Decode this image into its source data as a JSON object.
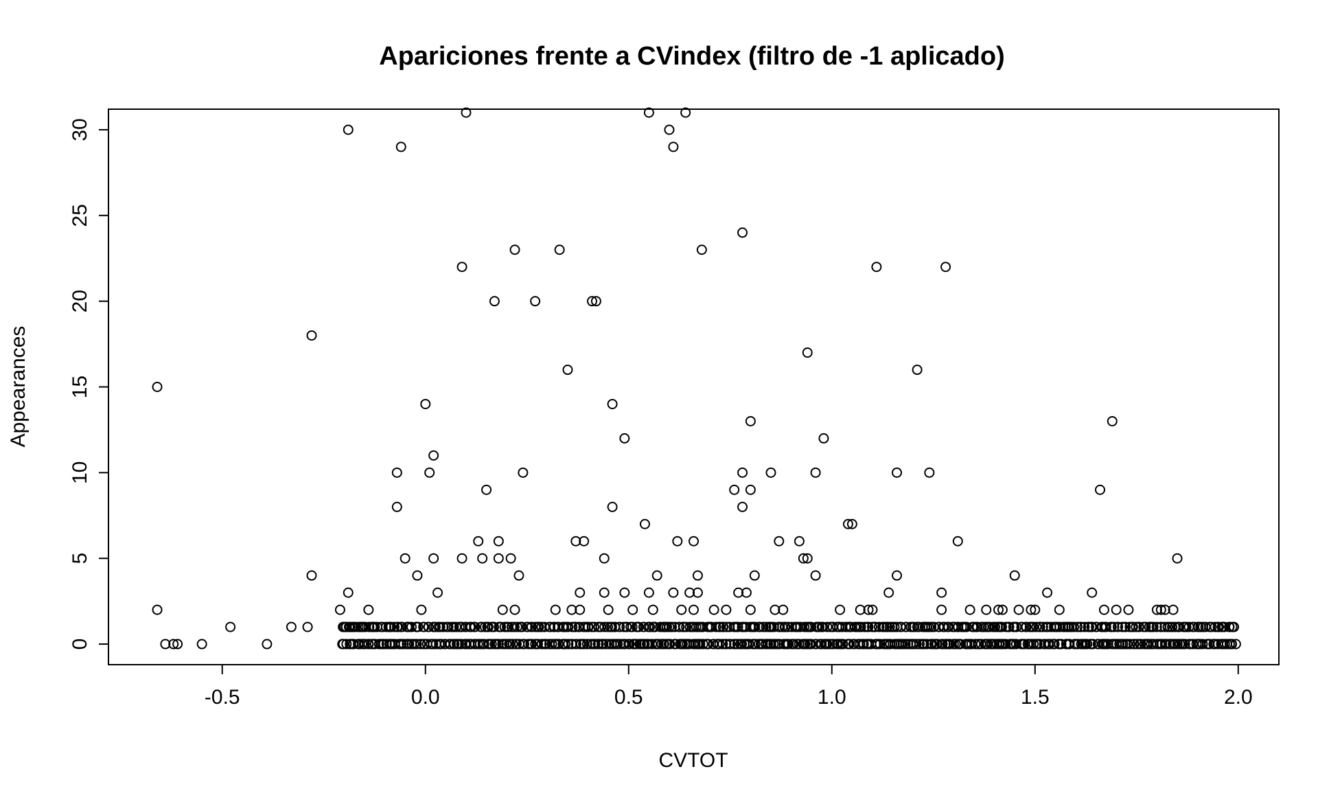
{
  "chart_data": {
    "type": "scatter",
    "title": "Apariciones frente a CVindex (filtro de -1 aplicado)",
    "xlabel": "CVTOT",
    "ylabel": "Appearances",
    "xlim": [
      -0.78,
      2.1
    ],
    "ylim": [
      -1.2,
      31.2
    ],
    "xticks": [
      -0.5,
      0.0,
      0.5,
      1.0,
      1.5,
      2.0
    ],
    "xtick_labels": [
      "-0.5",
      "0.0",
      "0.5",
      "1.0",
      "1.5",
      "2.0"
    ],
    "yticks": [
      0,
      5,
      10,
      15,
      20,
      25,
      30
    ],
    "ytick_labels": [
      "0",
      "5",
      "10",
      "15",
      "20",
      "25",
      "30"
    ],
    "grid": false,
    "marker": "open-circle",
    "points": [
      [
        -0.66,
        15
      ],
      [
        -0.66,
        2
      ],
      [
        -0.64,
        0
      ],
      [
        -0.62,
        0
      ],
      [
        -0.61,
        0
      ],
      [
        -0.55,
        0
      ],
      [
        -0.48,
        1
      ],
      [
        -0.39,
        0
      ],
      [
        -0.33,
        1
      ],
      [
        -0.29,
        1
      ],
      [
        -0.28,
        18
      ],
      [
        -0.28,
        4
      ],
      [
        -0.21,
        2
      ],
      [
        -0.2,
        1
      ],
      [
        -0.19,
        30
      ],
      [
        -0.19,
        3
      ],
      [
        -0.18,
        1
      ],
      [
        -0.16,
        1
      ],
      [
        -0.14,
        2
      ],
      [
        -0.13,
        1
      ],
      [
        -0.07,
        10
      ],
      [
        -0.07,
        8
      ],
      [
        -0.06,
        29
      ],
      [
        -0.05,
        5
      ],
      [
        -0.02,
        4
      ],
      [
        -0.01,
        2
      ],
      [
        0.0,
        14
      ],
      [
        0.01,
        10
      ],
      [
        0.02,
        11
      ],
      [
        0.02,
        5
      ],
      [
        0.03,
        3
      ],
      [
        0.09,
        22
      ],
      [
        0.09,
        5
      ],
      [
        0.1,
        31
      ],
      [
        0.13,
        6
      ],
      [
        0.14,
        5
      ],
      [
        0.15,
        9
      ],
      [
        0.17,
        20
      ],
      [
        0.18,
        6
      ],
      [
        0.18,
        5
      ],
      [
        0.19,
        2
      ],
      [
        0.21,
        5
      ],
      [
        0.22,
        23
      ],
      [
        0.22,
        2
      ],
      [
        0.23,
        4
      ],
      [
        0.24,
        10
      ],
      [
        0.27,
        20
      ],
      [
        0.32,
        2
      ],
      [
        0.33,
        23
      ],
      [
        0.35,
        16
      ],
      [
        0.36,
        2
      ],
      [
        0.37,
        6
      ],
      [
        0.38,
        2
      ],
      [
        0.39,
        6
      ],
      [
        0.38,
        3
      ],
      [
        0.41,
        20
      ],
      [
        0.42,
        20
      ],
      [
        0.44,
        5
      ],
      [
        0.44,
        3
      ],
      [
        0.45,
        2
      ],
      [
        0.46,
        14
      ],
      [
        0.46,
        8
      ],
      [
        0.49,
        12
      ],
      [
        0.49,
        3
      ],
      [
        0.51,
        2
      ],
      [
        0.54,
        7
      ],
      [
        0.55,
        31
      ],
      [
        0.55,
        3
      ],
      [
        0.56,
        2
      ],
      [
        0.57,
        4
      ],
      [
        0.6,
        30
      ],
      [
        0.61,
        29
      ],
      [
        0.61,
        3
      ],
      [
        0.62,
        6
      ],
      [
        0.63,
        2
      ],
      [
        0.64,
        31
      ],
      [
        0.65,
        3
      ],
      [
        0.66,
        6
      ],
      [
        0.66,
        2
      ],
      [
        0.67,
        4
      ],
      [
        0.67,
        3
      ],
      [
        0.68,
        23
      ],
      [
        0.71,
        2
      ],
      [
        0.74,
        2
      ],
      [
        0.76,
        9
      ],
      [
        0.77,
        3
      ],
      [
        0.78,
        24
      ],
      [
        0.78,
        10
      ],
      [
        0.78,
        8
      ],
      [
        0.79,
        3
      ],
      [
        0.8,
        13
      ],
      [
        0.8,
        9
      ],
      [
        0.8,
        2
      ],
      [
        0.81,
        4
      ],
      [
        0.85,
        10
      ],
      [
        0.86,
        2
      ],
      [
        0.87,
        6
      ],
      [
        0.88,
        2
      ],
      [
        0.92,
        6
      ],
      [
        0.93,
        5
      ],
      [
        0.94,
        17
      ],
      [
        0.94,
        5
      ],
      [
        0.96,
        10
      ],
      [
        0.96,
        4
      ],
      [
        0.98,
        12
      ],
      [
        1.02,
        2
      ],
      [
        1.04,
        7
      ],
      [
        1.05,
        7
      ],
      [
        1.07,
        2
      ],
      [
        1.09,
        2
      ],
      [
        1.1,
        2
      ],
      [
        1.11,
        22
      ],
      [
        1.14,
        3
      ],
      [
        1.16,
        10
      ],
      [
        1.16,
        4
      ],
      [
        1.21,
        16
      ],
      [
        1.24,
        10
      ],
      [
        1.27,
        3
      ],
      [
        1.27,
        2
      ],
      [
        1.28,
        22
      ],
      [
        1.31,
        6
      ],
      [
        1.34,
        2
      ],
      [
        1.38,
        2
      ],
      [
        1.41,
        2
      ],
      [
        1.42,
        2
      ],
      [
        1.45,
        4
      ],
      [
        1.46,
        2
      ],
      [
        1.49,
        2
      ],
      [
        1.5,
        2
      ],
      [
        1.53,
        3
      ],
      [
        1.56,
        2
      ],
      [
        1.64,
        3
      ],
      [
        1.66,
        9
      ],
      [
        1.67,
        2
      ],
      [
        1.69,
        13
      ],
      [
        1.7,
        2
      ],
      [
        1.73,
        2
      ],
      [
        1.8,
        2
      ],
      [
        1.81,
        2
      ],
      [
        1.82,
        2
      ],
      [
        1.84,
        2
      ],
      [
        1.85,
        5
      ]
    ],
    "dense_zero_range": [
      -0.21,
      2.0
    ],
    "dense_one_range": [
      -0.21,
      2.0
    ]
  }
}
